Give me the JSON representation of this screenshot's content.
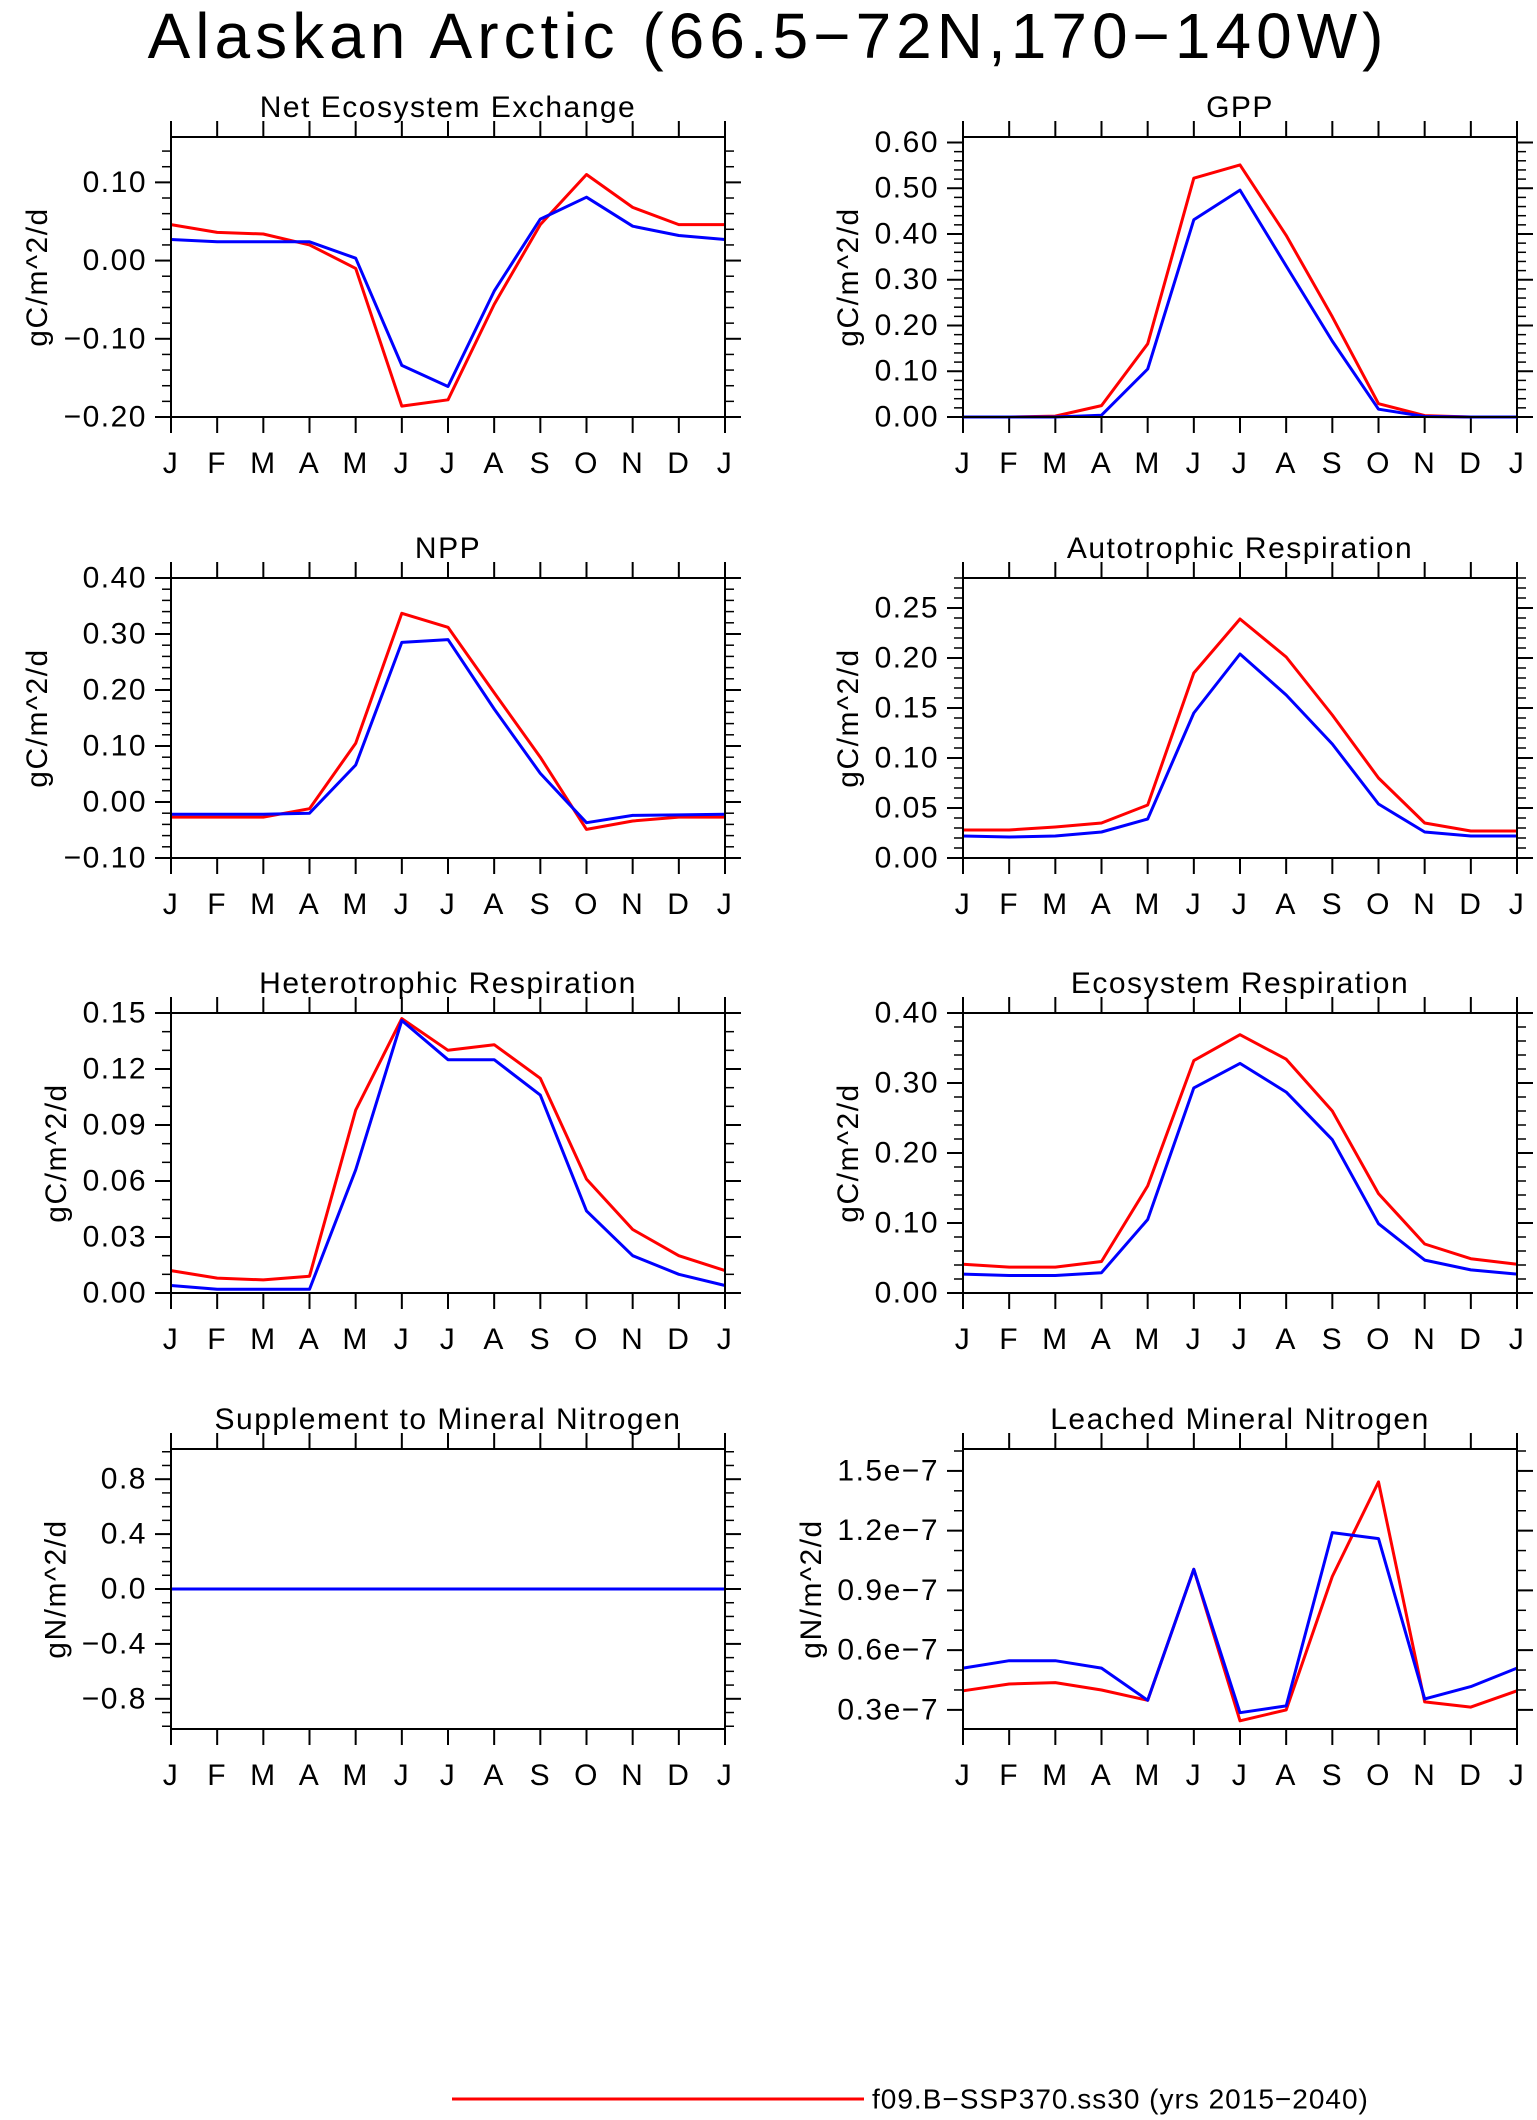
{
  "title": "Alaskan Arctic (66.5−72N,170−140W)",
  "legend": [
    {
      "label": "f09.B−SSP370.ss30 (yrs 2015−2040)",
      "color": "#ff0000"
    }
  ],
  "chart_data": [
    {
      "type": "line",
      "title": "Net Ecosystem Exchange",
      "ylabel": "gC/m^2/d",
      "categories": [
        "J",
        "F",
        "M",
        "A",
        "M",
        "J",
        "J",
        "A",
        "S",
        "O",
        "N",
        "D",
        "J"
      ],
      "ylim": [
        -0.2,
        0.158
      ],
      "ytick_labels": [
        "−0.20",
        "−0.10",
        "0.00",
        "0.10"
      ],
      "grid": false,
      "series": [
        {
          "color": "#ff0000",
          "values": [
            0.046,
            0.036,
            0.034,
            0.02,
            -0.01,
            -0.186,
            -0.178,
            -0.056,
            0.046,
            0.11,
            0.068,
            0.046,
            0.046
          ]
        },
        {
          "color": "#0000ff",
          "values": [
            0.027,
            0.024,
            0.024,
            0.024,
            0.003,
            -0.134,
            -0.161,
            -0.039,
            0.053,
            0.081,
            0.044,
            0.032,
            0.027
          ]
        }
      ]
    },
    {
      "type": "line",
      "title": "GPP",
      "ylabel": "gC/m^2/d",
      "categories": [
        "J",
        "F",
        "M",
        "A",
        "M",
        "J",
        "J",
        "A",
        "S",
        "O",
        "N",
        "D",
        "J"
      ],
      "ylim": [
        0,
        0.612
      ],
      "ytick_labels": [
        "0.00",
        "0.10",
        "0.20",
        "0.30",
        "0.40",
        "0.50",
        "0.60"
      ],
      "grid": false,
      "series": [
        {
          "color": "#ff0000",
          "values": [
            0.0,
            0.0,
            0.002,
            0.025,
            0.16,
            0.522,
            0.551,
            0.397,
            0.219,
            0.029,
            0.003,
            0.0,
            0.0
          ]
        },
        {
          "color": "#0000ff",
          "values": [
            0.0,
            0.0,
            0.0,
            0.004,
            0.105,
            0.431,
            0.496,
            0.33,
            0.166,
            0.017,
            0.001,
            0.0,
            0.0
          ]
        }
      ]
    },
    {
      "type": "line",
      "title": "NPP",
      "ylabel": "gC/m^2/d",
      "categories": [
        "J",
        "F",
        "M",
        "A",
        "M",
        "J",
        "J",
        "A",
        "S",
        "O",
        "N",
        "D",
        "J"
      ],
      "ylim": [
        -0.1,
        0.4
      ],
      "ytick_labels": [
        "−0.10",
        "0.00",
        "0.10",
        "0.20",
        "0.30",
        "0.40"
      ],
      "grid": false,
      "series": [
        {
          "color": "#ff0000",
          "values": [
            -0.027,
            -0.027,
            -0.027,
            -0.012,
            0.105,
            0.337,
            0.312,
            0.195,
            0.08,
            -0.049,
            -0.034,
            -0.027,
            -0.027
          ]
        },
        {
          "color": "#0000ff",
          "values": [
            -0.022,
            -0.022,
            -0.022,
            -0.02,
            0.066,
            0.285,
            0.29,
            0.166,
            0.051,
            -0.037,
            -0.024,
            -0.023,
            -0.022
          ]
        }
      ]
    },
    {
      "type": "line",
      "title": "Autotrophic Respiration",
      "ylabel": "gC/m^2/d",
      "categories": [
        "J",
        "F",
        "M",
        "A",
        "M",
        "J",
        "J",
        "A",
        "S",
        "O",
        "N",
        "D",
        "J"
      ],
      "ylim": [
        0,
        0.28
      ],
      "ytick_labels": [
        "0.00",
        "0.05",
        "0.10",
        "0.15",
        "0.20",
        "0.25"
      ],
      "grid": false,
      "series": [
        {
          "color": "#ff0000",
          "values": [
            0.028,
            0.028,
            0.031,
            0.035,
            0.053,
            0.185,
            0.239,
            0.201,
            0.143,
            0.08,
            0.035,
            0.027,
            0.027
          ]
        },
        {
          "color": "#0000ff",
          "values": [
            0.022,
            0.021,
            0.022,
            0.026,
            0.039,
            0.145,
            0.204,
            0.163,
            0.114,
            0.054,
            0.026,
            0.022,
            0.022
          ]
        }
      ]
    },
    {
      "type": "line",
      "title": "Heterotrophic Respiration",
      "ylabel": "gC/m^2/d",
      "categories": [
        "J",
        "F",
        "M",
        "A",
        "M",
        "J",
        "J",
        "A",
        "S",
        "O",
        "N",
        "D",
        "J"
      ],
      "ylim": [
        0,
        0.15
      ],
      "ytick_labels": [
        "0.00",
        "0.03",
        "0.06",
        "0.09",
        "0.12",
        "0.15"
      ],
      "grid": false,
      "series": [
        {
          "color": "#ff0000",
          "values": [
            0.012,
            0.008,
            0.007,
            0.009,
            0.098,
            0.147,
            0.13,
            0.133,
            0.115,
            0.061,
            0.034,
            0.02,
            0.012
          ]
        },
        {
          "color": "#0000ff",
          "values": [
            0.004,
            0.002,
            0.002,
            0.002,
            0.066,
            0.146,
            0.125,
            0.125,
            0.106,
            0.044,
            0.02,
            0.01,
            0.004
          ]
        }
      ]
    },
    {
      "type": "line",
      "title": "Ecosystem Respiration",
      "ylabel": "gC/m^2/d",
      "categories": [
        "J",
        "F",
        "M",
        "A",
        "M",
        "J",
        "J",
        "A",
        "S",
        "O",
        "N",
        "D",
        "J"
      ],
      "ylim": [
        0,
        0.4
      ],
      "ytick_labels": [
        "0.00",
        "0.10",
        "0.20",
        "0.30",
        "0.40"
      ],
      "grid": false,
      "series": [
        {
          "color": "#ff0000",
          "values": [
            0.041,
            0.037,
            0.037,
            0.045,
            0.153,
            0.332,
            0.369,
            0.334,
            0.26,
            0.142,
            0.07,
            0.049,
            0.041
          ]
        },
        {
          "color": "#0000ff",
          "values": [
            0.027,
            0.025,
            0.025,
            0.029,
            0.105,
            0.293,
            0.328,
            0.287,
            0.219,
            0.099,
            0.047,
            0.033,
            0.027
          ]
        }
      ]
    },
    {
      "type": "line",
      "title": "Supplement to Mineral Nitrogen",
      "ylabel": "gN/m^2/d",
      "categories": [
        "J",
        "F",
        "M",
        "A",
        "M",
        "J",
        "J",
        "A",
        "S",
        "O",
        "N",
        "D",
        "J"
      ],
      "ylim": [
        -1.02,
        1.02
      ],
      "ytick_labels": [
        "−0.8",
        "−0.4",
        "0.0",
        "0.4",
        "0.8"
      ],
      "grid": false,
      "series": [
        {
          "color": "#ff0000",
          "values": [
            0,
            0,
            0,
            0,
            0,
            0,
            0,
            0,
            0,
            0,
            0,
            0,
            0
          ]
        },
        {
          "color": "#0000ff",
          "values": [
            0,
            0,
            0,
            0,
            0,
            0,
            0,
            0,
            0,
            0,
            0,
            0,
            0
          ]
        }
      ]
    },
    {
      "type": "line",
      "title": "Leached Mineral Nitrogen",
      "ylabel": "gN/m^2/d",
      "categories": [
        "J",
        "F",
        "M",
        "A",
        "M",
        "J",
        "J",
        "A",
        "S",
        "O",
        "N",
        "D",
        "J"
      ],
      "ylim": [
        2.04e-08,
        1.61e-07
      ],
      "ytick_labels": [
        "0.3e−7",
        "0.6e−7",
        "0.9e−7",
        "1.2e−7",
        "1.5e−7"
      ],
      "grid": false,
      "series": [
        {
          "color": "#ff0000",
          "values": [
            3.96e-08,
            4.3e-08,
            4.37e-08,
            4e-08,
            3.48e-08,
            1.006e-07,
            2.45e-08,
            3e-08,
            9.7e-08,
            1.445e-07,
            3.4e-08,
            3.14e-08,
            3.96e-08
          ]
        },
        {
          "color": "#0000ff",
          "values": [
            5.1e-08,
            5.47e-08,
            5.47e-08,
            5.1e-08,
            3.48e-08,
            1.006e-07,
            2.86e-08,
            3.2e-08,
            1.19e-07,
            1.16e-07,
            3.55e-08,
            4.17e-08,
            5.1e-08
          ]
        }
      ]
    }
  ]
}
